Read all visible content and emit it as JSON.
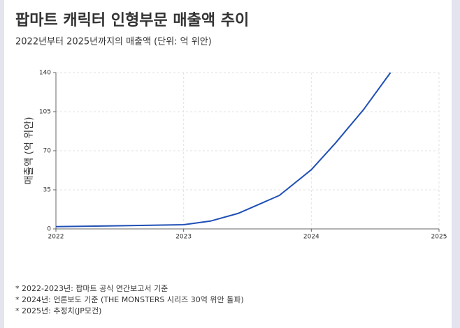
{
  "chart_data": {
    "type": "line",
    "title": "팝마트 캐릭터 인형부문 매출액 추이",
    "subtitle": "2022년부터 2025년까지의 매출액 (단위: 억 위안)",
    "y_label": "매출액 (억 위안)",
    "notes": [
      "* 2022-2023년: 팝마트 공식 연간보고서 기준",
      "* 2024년: 언론보도 기준 (THE MONSTERS 시리즈 30억 위안 돌파)",
      "* 2025년: 추정치(JP모건)"
    ],
    "x": [
      2022,
      2022.5,
      2023,
      2023.21,
      2023.43,
      2023.59,
      2023.75,
      2024,
      2024.19,
      2024.41,
      2024.62
    ],
    "values": [
      2,
      2.8,
      3.75,
      7,
      14,
      22,
      30,
      53,
      77,
      107,
      140
    ],
    "color": "#1f4fb5",
    "xlim": [
      2022,
      2025
    ],
    "xticks": [
      2022,
      2023,
      2024,
      2025
    ],
    "ylim": [
      0,
      140
    ],
    "yticks": [
      0,
      35,
      70,
      105,
      140
    ],
    "grid": true
  }
}
